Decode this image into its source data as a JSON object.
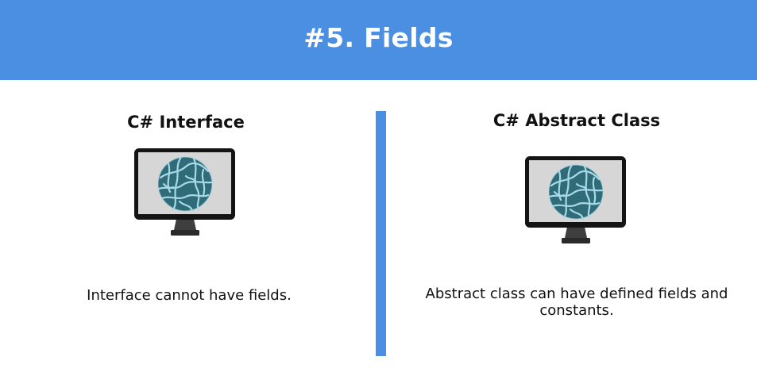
{
  "header": {
    "title": "#5. Fields",
    "background": "#4a8fe2"
  },
  "left_column": {
    "title": "C# Interface",
    "description": "Interface cannot have fields.",
    "icon": "monitor-globe-icon"
  },
  "right_column": {
    "title": "C# Abstract Class",
    "description": "Abstract class can have defined fields and constants.",
    "icon": "monitor-globe-icon"
  },
  "divider_color": "#4a8fe2"
}
